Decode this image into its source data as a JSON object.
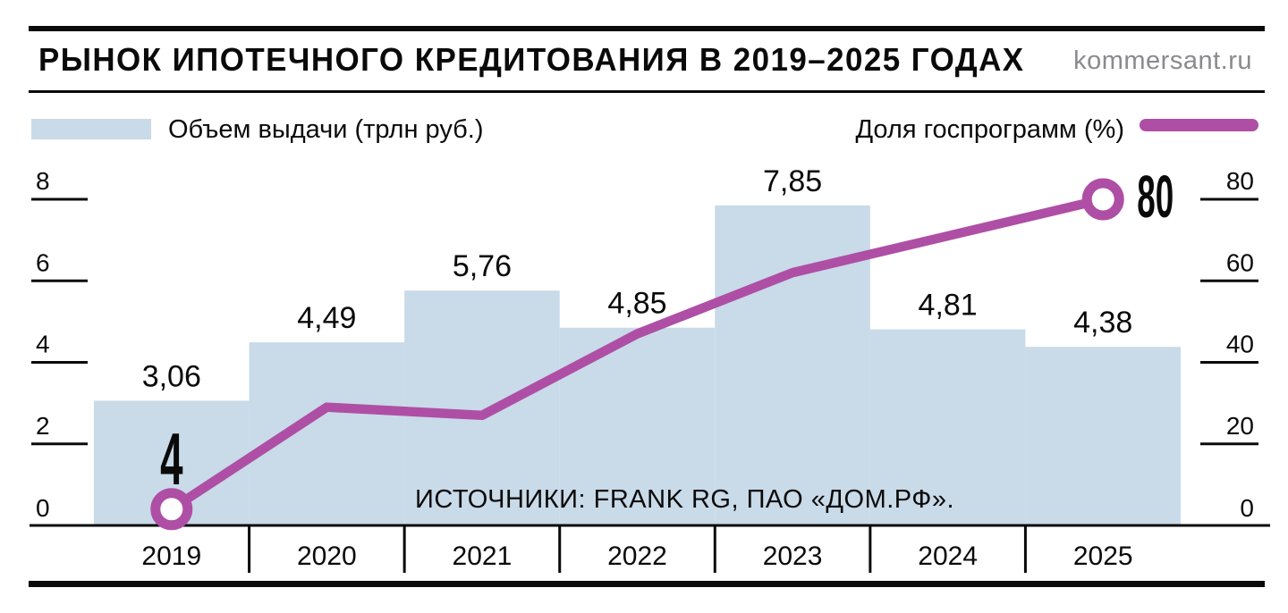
{
  "header": {
    "title": "РЫНОК ИПОТЕЧНОГО КРЕДИТОВАНИЯ В 2019–2025 ГОДАХ",
    "brand": "kommersant.ru"
  },
  "legend": {
    "bars_label": "Объем выдачи (трлн руб.)",
    "line_label": "Доля госпрограмм (%)"
  },
  "source": {
    "text": "ИСТОЧНИКИ: FRANK RG, ПАО «ДОМ.РФ»."
  },
  "colors": {
    "bar": "#c9dae8",
    "line": "#ae4fa5",
    "ink": "#0a0a0a",
    "brand": "#8a8a8e",
    "marker_fill": "#ffffff"
  },
  "chart_data": {
    "type": "bar+line",
    "title": "Рынок ипотечного кредитования в 2019–2025 годах",
    "categories": [
      "2019",
      "2020",
      "2021",
      "2022",
      "2023",
      "2024",
      "2025"
    ],
    "series": [
      {
        "name": "Объем выдачи (трлн руб.)",
        "type": "bar",
        "axis": "left",
        "values": [
          3.06,
          4.49,
          5.76,
          4.85,
          7.85,
          4.81,
          4.38
        ],
        "value_labels": [
          "3,06",
          "4,49",
          "5,76",
          "4,85",
          "7,85",
          "4,81",
          "4,38"
        ],
        "color": "#c9dae8"
      },
      {
        "name": "Доля госпрограмм (%)",
        "type": "line",
        "axis": "right",
        "values": [
          4,
          29,
          27,
          47,
          62,
          71,
          80
        ],
        "endpoint_labels": [
          "4",
          "80"
        ],
        "marker": "circle-on-first-and-last",
        "color": "#ae4fa5"
      }
    ],
    "left_axis": {
      "ticks": [
        0,
        2,
        4,
        6,
        8
      ],
      "range": [
        0,
        8
      ]
    },
    "right_axis": {
      "ticks": [
        0,
        20,
        40,
        60,
        80
      ],
      "range": [
        0,
        80
      ]
    },
    "grid": false,
    "legend_position": "top"
  }
}
